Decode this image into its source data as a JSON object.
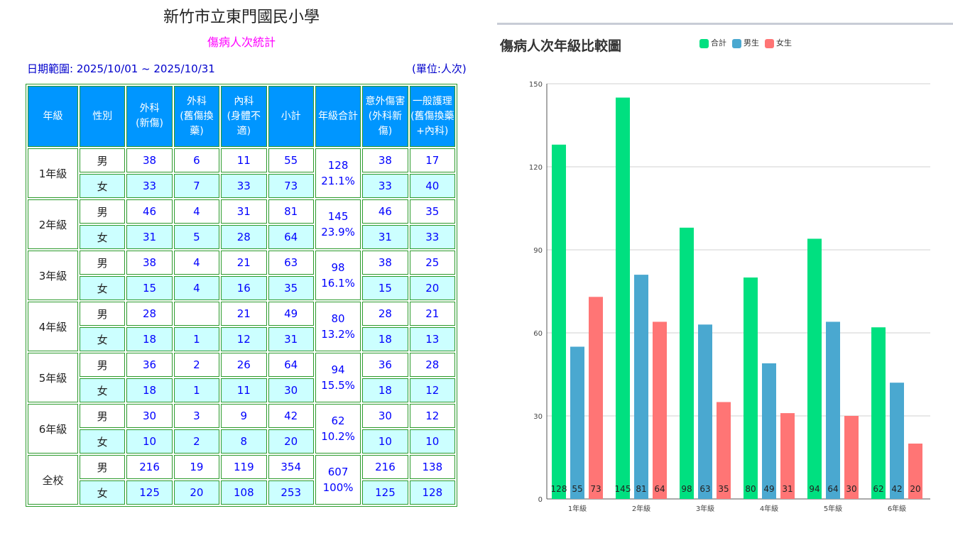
{
  "report": {
    "school": "新竹市立東門國民小學",
    "subtitle": "傷病人次統計",
    "date_range": "日期範圍: 2025/10/01 ~ 2025/10/31",
    "unit": "(單位:人次)"
  },
  "table": {
    "headers": [
      "年級",
      "性別",
      "外科\n(新傷)",
      "外科\n(舊傷換藥)",
      "內科\n(身體不適)",
      "小計",
      "年級合計",
      "意外傷害\n(外科新傷)",
      "一般護理\n(舊傷換藥\n+內科)"
    ],
    "groups": [
      {
        "grade": "1年級",
        "total": "128",
        "pct": "21.1%",
        "rows": [
          [
            "男",
            "38",
            "6",
            "11",
            "55",
            "38",
            "17"
          ],
          [
            "女",
            "33",
            "7",
            "33",
            "73",
            "33",
            "40"
          ]
        ]
      },
      {
        "grade": "2年級",
        "total": "145",
        "pct": "23.9%",
        "rows": [
          [
            "男",
            "46",
            "4",
            "31",
            "81",
            "46",
            "35"
          ],
          [
            "女",
            "31",
            "5",
            "28",
            "64",
            "31",
            "33"
          ]
        ]
      },
      {
        "grade": "3年級",
        "total": "98",
        "pct": "16.1%",
        "rows": [
          [
            "男",
            "38",
            "4",
            "21",
            "63",
            "38",
            "25"
          ],
          [
            "女",
            "15",
            "4",
            "16",
            "35",
            "15",
            "20"
          ]
        ]
      },
      {
        "grade": "4年級",
        "total": "80",
        "pct": "13.2%",
        "rows": [
          [
            "男",
            "28",
            "",
            "21",
            "49",
            "28",
            "21"
          ],
          [
            "女",
            "18",
            "1",
            "12",
            "31",
            "18",
            "13"
          ]
        ]
      },
      {
        "grade": "5年級",
        "total": "94",
        "pct": "15.5%",
        "rows": [
          [
            "男",
            "36",
            "2",
            "26",
            "64",
            "36",
            "28"
          ],
          [
            "女",
            "18",
            "1",
            "11",
            "30",
            "18",
            "12"
          ]
        ]
      },
      {
        "grade": "6年級",
        "total": "62",
        "pct": "10.2%",
        "rows": [
          [
            "男",
            "30",
            "3",
            "9",
            "42",
            "30",
            "12"
          ],
          [
            "女",
            "10",
            "2",
            "8",
            "20",
            "10",
            "10"
          ]
        ]
      },
      {
        "grade": "全校",
        "total": "607",
        "pct": "100%",
        "rows": [
          [
            "男",
            "216",
            "19",
            "119",
            "354",
            "216",
            "138"
          ],
          [
            "女",
            "125",
            "20",
            "108",
            "253",
            "125",
            "128"
          ]
        ]
      }
    ]
  },
  "chart_data": {
    "type": "bar",
    "title": "傷病人次年級比較圖",
    "categories": [
      "1年級",
      "2年級",
      "3年級",
      "4年級",
      "5年級",
      "6年級"
    ],
    "series": [
      {
        "name": "合計",
        "color": "#00e080",
        "values": [
          128,
          145,
          98,
          80,
          94,
          62
        ]
      },
      {
        "name": "男生",
        "color": "#4aa8d0",
        "values": [
          55,
          81,
          63,
          49,
          64,
          42
        ]
      },
      {
        "name": "女生",
        "color": "#ff7575",
        "values": [
          73,
          64,
          35,
          31,
          30,
          20
        ]
      }
    ],
    "ylim": [
      0,
      150
    ],
    "yticks": [
      0,
      30,
      60,
      90,
      120,
      150
    ],
    "grid": true,
    "legend": "top-center",
    "data_labels": true
  }
}
